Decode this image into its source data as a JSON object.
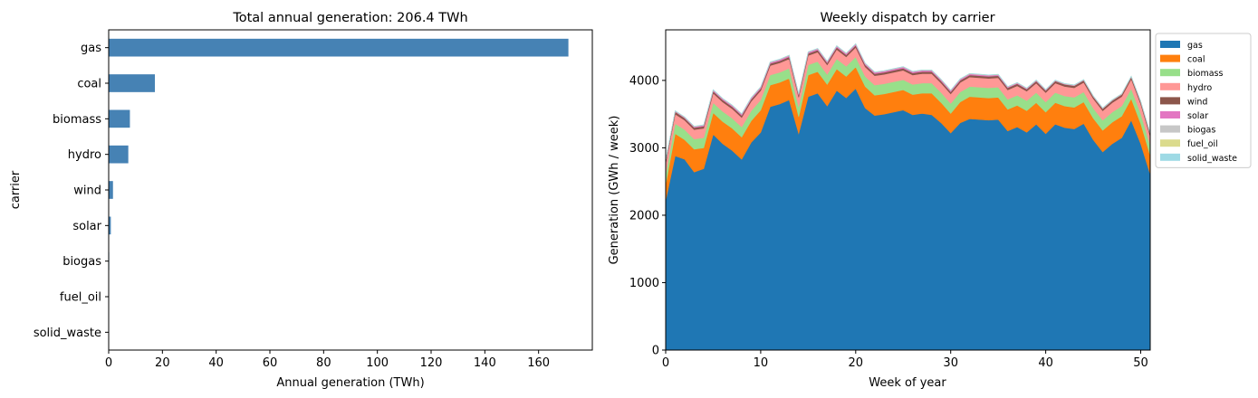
{
  "chart_data": [
    {
      "type": "bar",
      "orientation": "horizontal",
      "title": "Total annual generation: 206.4 TWh",
      "xlabel": "Annual generation (TWh)",
      "ylabel": "carrier",
      "categories": [
        "gas",
        "coal",
        "biomass",
        "hydro",
        "wind",
        "solar",
        "biogas",
        "fuel_oil",
        "solid_waste"
      ],
      "values": [
        171.1,
        17.2,
        7.9,
        7.3,
        1.6,
        0.8,
        0.2,
        0.1,
        0.1
      ],
      "xlim": [
        0,
        180
      ],
      "xticks": [
        0,
        20,
        40,
        60,
        80,
        100,
        120,
        140,
        160
      ],
      "bar_color": "#4682b4",
      "grid": false
    },
    {
      "type": "area",
      "stacked": true,
      "title": "Weekly dispatch by carrier",
      "xlabel": "Week of year",
      "ylabel": "Generation (GWh / week)",
      "xlim": [
        0,
        51
      ],
      "ylim": [
        0,
        4750
      ],
      "xticks": [
        0,
        10,
        20,
        30,
        40,
        50
      ],
      "yticks": [
        0,
        1000,
        2000,
        3000,
        4000
      ],
      "legend_position": "outside-right-top",
      "grid": false,
      "x": [
        0,
        1,
        2,
        3,
        4,
        5,
        6,
        7,
        8,
        9,
        10,
        11,
        12,
        13,
        14,
        15,
        16,
        17,
        18,
        19,
        20,
        21,
        22,
        23,
        24,
        25,
        26,
        27,
        28,
        29,
        30,
        31,
        32,
        33,
        34,
        35,
        36,
        37,
        38,
        39,
        40,
        41,
        42,
        43,
        44,
        45,
        46,
        47,
        48,
        49,
        50,
        51
      ],
      "series": [
        {
          "name": "gas",
          "color": "#1f77b4",
          "values": [
            2220,
            2880,
            2830,
            2640,
            2690,
            3200,
            3060,
            2960,
            2830,
            3080,
            3230,
            3610,
            3650,
            3710,
            3210,
            3760,
            3810,
            3620,
            3850,
            3740,
            3880,
            3590,
            3480,
            3500,
            3530,
            3560,
            3490,
            3510,
            3490,
            3370,
            3220,
            3370,
            3430,
            3420,
            3410,
            3420,
            3250,
            3310,
            3230,
            3350,
            3210,
            3350,
            3300,
            3280,
            3360,
            3120,
            2940,
            3060,
            3150,
            3410,
            3060,
            2610
          ]
        },
        {
          "name": "coal",
          "color": "#ff7f0e",
          "values": [
            240,
            330,
            290,
            340,
            310,
            320,
            330,
            330,
            330,
            320,
            330,
            320,
            320,
            320,
            250,
            320,
            320,
            320,
            320,
            320,
            320,
            320,
            300,
            300,
            300,
            300,
            300,
            300,
            320,
            300,
            290,
            310,
            330,
            330,
            330,
            330,
            320,
            320,
            320,
            320,
            320,
            320,
            320,
            320,
            320,
            320,
            320,
            320,
            320,
            320,
            300,
            280
          ]
        },
        {
          "name": "biomass",
          "color": "#98df8a",
          "values": [
            150,
            150,
            150,
            150,
            150,
            150,
            150,
            150,
            150,
            150,
            150,
            150,
            150,
            150,
            150,
            150,
            150,
            150,
            150,
            150,
            150,
            150,
            150,
            150,
            150,
            150,
            150,
            150,
            150,
            150,
            150,
            150,
            150,
            150,
            150,
            150,
            150,
            150,
            150,
            150,
            150,
            150,
            150,
            150,
            150,
            150,
            150,
            150,
            150,
            150,
            150,
            150
          ]
        },
        {
          "name": "hydro",
          "color": "#ff9896",
          "values": [
            160,
            140,
            140,
            140,
            140,
            140,
            140,
            140,
            140,
            140,
            140,
            140,
            140,
            140,
            140,
            140,
            140,
            140,
            140,
            140,
            140,
            140,
            140,
            140,
            140,
            140,
            140,
            140,
            140,
            140,
            140,
            140,
            140,
            140,
            140,
            140,
            140,
            140,
            140,
            140,
            140,
            140,
            140,
            140,
            140,
            140,
            140,
            140,
            140,
            140,
            140,
            130
          ]
        },
        {
          "name": "wind",
          "color": "#8c564b",
          "values": [
            35,
            35,
            30,
            30,
            30,
            30,
            30,
            30,
            30,
            30,
            30,
            30,
            30,
            30,
            30,
            30,
            30,
            30,
            30,
            30,
            30,
            30,
            30,
            30,
            30,
            30,
            30,
            30,
            30,
            30,
            30,
            30,
            30,
            30,
            30,
            30,
            30,
            30,
            30,
            30,
            30,
            30,
            30,
            30,
            30,
            30,
            30,
            30,
            30,
            30,
            30,
            35
          ]
        },
        {
          "name": "solar",
          "color": "#e377c2",
          "values": [
            5,
            8,
            10,
            12,
            14,
            15,
            16,
            17,
            18,
            18,
            18,
            18,
            18,
            18,
            18,
            18,
            18,
            18,
            18,
            18,
            18,
            18,
            18,
            18,
            18,
            18,
            18,
            18,
            18,
            18,
            18,
            17,
            16,
            15,
            14,
            13,
            12,
            11,
            10,
            9,
            8,
            7,
            6,
            6,
            5,
            5,
            5,
            5,
            5,
            5,
            5,
            5
          ]
        },
        {
          "name": "biogas",
          "color": "#c7c7c7",
          "values": [
            4,
            4,
            4,
            4,
            4,
            4,
            4,
            4,
            4,
            4,
            4,
            4,
            4,
            4,
            4,
            4,
            4,
            4,
            4,
            4,
            4,
            4,
            4,
            4,
            4,
            4,
            4,
            4,
            4,
            4,
            4,
            4,
            4,
            4,
            4,
            4,
            4,
            4,
            4,
            4,
            4,
            4,
            4,
            4,
            4,
            4,
            4,
            4,
            4,
            4,
            4,
            4
          ]
        },
        {
          "name": "fuel_oil",
          "color": "#dbdb8d",
          "values": [
            2,
            2,
            2,
            2,
            2,
            2,
            2,
            2,
            2,
            2,
            2,
            2,
            2,
            2,
            2,
            2,
            2,
            2,
            2,
            2,
            2,
            2,
            2,
            2,
            2,
            2,
            2,
            2,
            2,
            2,
            2,
            2,
            2,
            2,
            2,
            2,
            2,
            2,
            2,
            2,
            2,
            2,
            2,
            2,
            2,
            2,
            2,
            2,
            2,
            2,
            2,
            2
          ]
        },
        {
          "name": "solid_waste",
          "color": "#9edae5",
          "values": [
            2,
            2,
            2,
            2,
            2,
            2,
            2,
            2,
            2,
            2,
            2,
            2,
            2,
            2,
            2,
            2,
            2,
            2,
            2,
            2,
            2,
            2,
            2,
            2,
            2,
            2,
            2,
            2,
            2,
            2,
            2,
            2,
            2,
            2,
            2,
            2,
            2,
            2,
            2,
            2,
            2,
            2,
            2,
            2,
            2,
            2,
            2,
            2,
            2,
            2,
            2,
            2
          ]
        }
      ]
    }
  ]
}
